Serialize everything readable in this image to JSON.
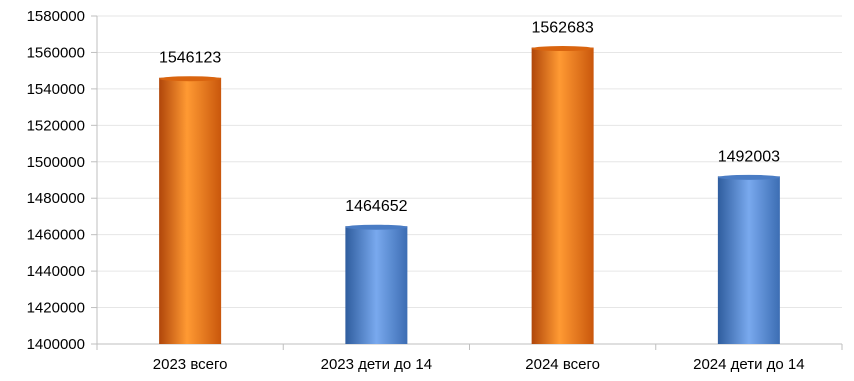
{
  "chart_data": {
    "type": "bar",
    "title": "",
    "xlabel": "",
    "ylabel": "",
    "categories": [
      "2023 всего",
      "2023 дети до 14",
      "2024 всего",
      "2024 дети до 14"
    ],
    "values": [
      1546123,
      1464652,
      1562683,
      1492003
    ],
    "data_labels": [
      "1546123",
      "1464652",
      "1562683",
      "1492003"
    ],
    "bar_colors": [
      "orange",
      "blue",
      "orange",
      "blue"
    ],
    "palette": {
      "orange": "#f28a1e",
      "blue": "#5b8fd9"
    },
    "ylim": [
      1400000,
      1580000
    ],
    "yticks": [
      1400000,
      1420000,
      1440000,
      1460000,
      1480000,
      1500000,
      1520000,
      1540000,
      1560000,
      1580000
    ],
    "ytick_labels": [
      "1400000",
      "1420000",
      "1440000",
      "1460000",
      "1480000",
      "1500000",
      "1520000",
      "1540000",
      "1560000",
      "1580000"
    ],
    "grid": true,
    "legend": "none"
  }
}
